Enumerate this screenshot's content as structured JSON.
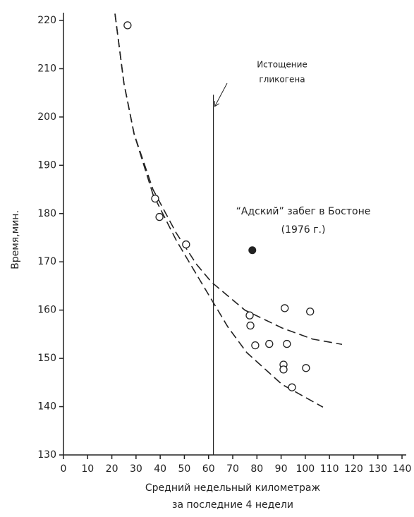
{
  "chart_data": {
    "type": "scatter",
    "y_label": "Время,мин.",
    "x_label": [
      "Средний недельный километраж",
      "за последние 4 недели"
    ],
    "xlim": [
      0,
      140
    ],
    "xticks": [
      0,
      10,
      20,
      30,
      40,
      50,
      60,
      70,
      80,
      90,
      100,
      110,
      120,
      130,
      140
    ],
    "ylim": [
      130,
      220
    ],
    "yticks": [
      130,
      140,
      150,
      160,
      170,
      180,
      190,
      200,
      210,
      220
    ],
    "color": "#222",
    "points": {
      "x": [
        26.5,
        37.9,
        39.7,
        50.7,
        77.0,
        77.3,
        79.3,
        85.1,
        91.5,
        92.4,
        91.0,
        91.0,
        102.0,
        100.3,
        94.5
      ],
      "y": [
        219.0,
        183.1,
        179.3,
        173.6,
        158.9,
        156.8,
        152.7,
        153.0,
        160.4,
        153.0,
        148.7,
        147.7,
        159.7,
        148.0,
        144.0
      ]
    },
    "curves": [
      {
        "x": [
          21.3,
          25.0,
          29.2,
          37.0,
          46.6,
          55.0,
          61.2,
          75.0,
          90.4,
          103.0,
          115.2
        ],
        "values": [
          221.4,
          207.0,
          196.5,
          185.0,
          176.0,
          169.5,
          165.8,
          160.0,
          156.3,
          154.0,
          152.9
        ]
      },
      {
        "x": [
          21.3,
          25.0,
          29.2,
          37.0,
          46.6,
          52.5,
          61.2,
          68.0,
          75.8,
          90.4,
          107.3
        ],
        "values": [
          221.4,
          207.0,
          196.5,
          184.0,
          174.5,
          169.5,
          162.2,
          156.5,
          151.2,
          144.6,
          139.9
        ]
      }
    ],
    "glycogen_line": {
      "x": 62,
      "top": 204.6,
      "label": [
        "Истощение",
        "гликогена"
      ]
    },
    "boston": {
      "x": 78.1,
      "y": 172.4,
      "label": [
        "“Адский” забег в Бостоне",
        "(1976 г.)"
      ]
    }
  }
}
